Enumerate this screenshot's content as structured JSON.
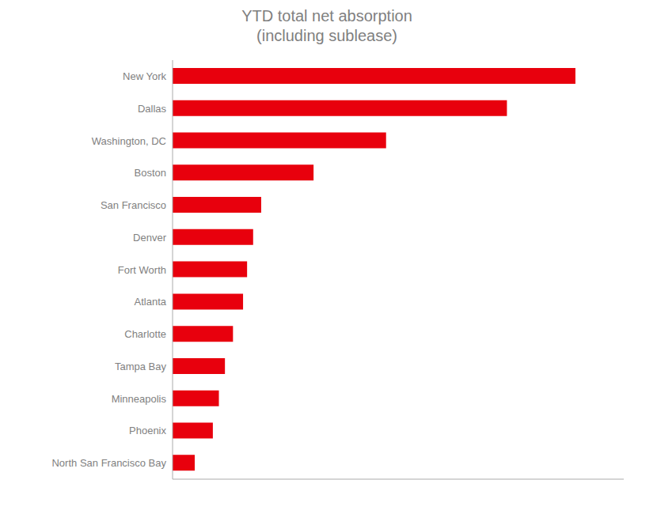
{
  "chart_data": {
    "type": "bar",
    "title": "YTD total net absorption\n(including sublease)",
    "categories": [
      "New York",
      "Dallas",
      "Washington, DC",
      "Boston",
      "San Francisco",
      "Denver",
      "Fort Worth",
      "Atlanta",
      "Charlotte",
      "Tampa Bay",
      "Minneapolis",
      "Phoenix",
      "North San Francisco Bay"
    ],
    "values": [
      10.0,
      8.3,
      5.3,
      3.5,
      2.2,
      2.0,
      1.85,
      1.75,
      1.5,
      1.3,
      1.15,
      1.0,
      0.55
    ],
    "color": "#e8000d",
    "orientation": "horizontal",
    "xlim": [
      0,
      11.2
    ],
    "grid": false,
    "tick_labels": "y"
  }
}
